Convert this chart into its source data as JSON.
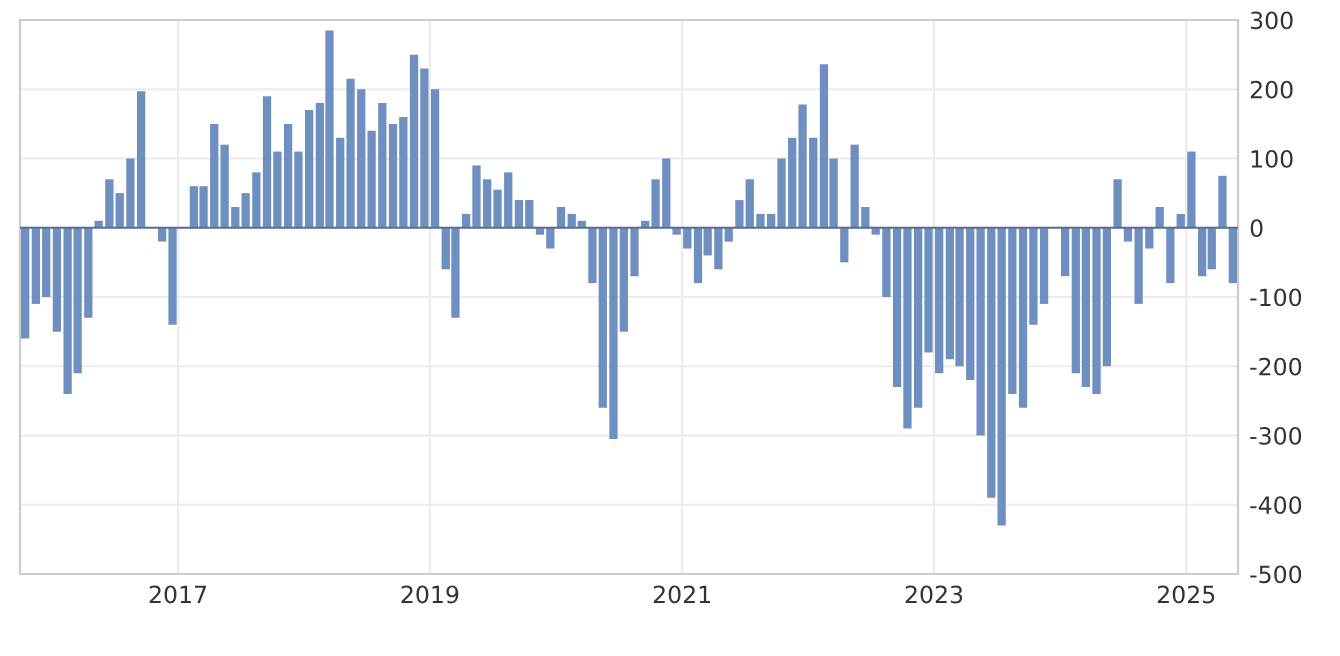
{
  "chart_data": {
    "type": "bar",
    "color": "#6f8fc0",
    "x": [
      "2015-10",
      "2015-11",
      "2015-12",
      "2016-01",
      "2016-02",
      "2016-03",
      "2016-04",
      "2016-05",
      "2016-06",
      "2016-07",
      "2016-08",
      "2016-09",
      "2016-10",
      "2016-11",
      "2016-12",
      "2017-01",
      "2017-02",
      "2017-03",
      "2017-04",
      "2017-05",
      "2017-06",
      "2017-07",
      "2017-08",
      "2017-09",
      "2017-10",
      "2017-11",
      "2017-12",
      "2018-01",
      "2018-02",
      "2018-03",
      "2018-04",
      "2018-05",
      "2018-06",
      "2018-07",
      "2018-08",
      "2018-09",
      "2018-10",
      "2018-11",
      "2018-12",
      "2019-01",
      "2019-02",
      "2019-03",
      "2019-04",
      "2019-05",
      "2019-06",
      "2019-07",
      "2019-08",
      "2019-09",
      "2019-10",
      "2019-11",
      "2019-12",
      "2020-01",
      "2020-02",
      "2020-03",
      "2020-04",
      "2020-05",
      "2020-06",
      "2020-07",
      "2020-08",
      "2020-09",
      "2020-10",
      "2020-11",
      "2020-12",
      "2021-01",
      "2021-02",
      "2021-03",
      "2021-04",
      "2021-05",
      "2021-06",
      "2021-07",
      "2021-08",
      "2021-09",
      "2021-10",
      "2021-11",
      "2021-12",
      "2022-01",
      "2022-02",
      "2022-03",
      "2022-04",
      "2022-05",
      "2022-06",
      "2022-07",
      "2022-08",
      "2022-09",
      "2022-10",
      "2022-11",
      "2022-12",
      "2023-01",
      "2023-02",
      "2023-03",
      "2023-04",
      "2023-05",
      "2023-06",
      "2023-07",
      "2023-08",
      "2023-09",
      "2023-10",
      "2023-11",
      "2023-12",
      "2024-01",
      "2024-02",
      "2024-03",
      "2024-04",
      "2024-05",
      "2024-06",
      "2024-07",
      "2024-08",
      "2024-09",
      "2024-10",
      "2024-11",
      "2024-12",
      "2025-01",
      "2025-02",
      "2025-03",
      "2025-04",
      "2025-05"
    ],
    "values": [
      -160,
      -110,
      -100,
      -150,
      -240,
      -210,
      -130,
      10,
      70,
      50,
      100,
      197,
      0,
      -20,
      -140,
      0,
      60,
      60,
      150,
      120,
      30,
      50,
      80,
      190,
      110,
      150,
      110,
      170,
      180,
      285,
      130,
      215,
      200,
      140,
      180,
      150,
      160,
      250,
      230,
      200,
      -60,
      -130,
      20,
      90,
      70,
      55,
      80,
      40,
      40,
      -10,
      -30,
      30,
      20,
      10,
      -80,
      -260,
      -305,
      -150,
      -70,
      10,
      70,
      100,
      -10,
      -30,
      -80,
      -40,
      -60,
      -20,
      40,
      70,
      20,
      20,
      100,
      130,
      178,
      130,
      236,
      100,
      -50,
      120,
      30,
      -10,
      -100,
      -230,
      -290,
      -260,
      -180,
      -210,
      -190,
      -200,
      -220,
      -300,
      -390,
      -430,
      -240,
      -260,
      -140,
      -110,
      0,
      -70,
      -210,
      -230,
      -240,
      -200,
      70,
      -20,
      -110,
      -30,
      30,
      -80,
      20,
      110,
      -70,
      -60,
      75,
      -80
    ],
    "xlim": [
      "2015-10-01",
      "2025-05-31"
    ],
    "ref_lines": [
      {
        "axis": "y",
        "value": 0,
        "color": "#5a6f90"
      }
    ],
    "xticks": [
      {
        "value": "2017-01-01",
        "label": "2017"
      },
      {
        "value": "2019-01-01",
        "label": "2019"
      },
      {
        "value": "2021-01-01",
        "label": "2021"
      },
      {
        "value": "2023-01-01",
        "label": "2023"
      },
      {
        "value": "2025-01-01",
        "label": "2025"
      }
    ],
    "ylim": [
      -500,
      300
    ],
    "yticks": [
      -500,
      -400,
      -300,
      -200,
      -100,
      0,
      100,
      200,
      300
    ],
    "grid": true
  }
}
